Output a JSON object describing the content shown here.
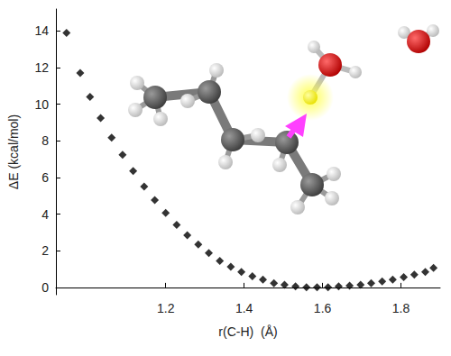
{
  "chart_data": {
    "type": "scatter",
    "xlabel": "r(C-H)  (Å)",
    "ylabel": "ΔE (kcal/mol)",
    "x": [
      0.947,
      0.982,
      1.007,
      1.034,
      1.062,
      1.09,
      1.117,
      1.145,
      1.172,
      1.2,
      1.228,
      1.255,
      1.283,
      1.31,
      1.338,
      1.366,
      1.393,
      1.421,
      1.448,
      1.476,
      1.503,
      1.531,
      1.559,
      1.586,
      1.614,
      1.641,
      1.669,
      1.697,
      1.724,
      1.752,
      1.779,
      1.807,
      1.834,
      1.862,
      1.883
    ],
    "values": [
      13.9,
      11.7,
      10.4,
      9.25,
      8.18,
      7.24,
      6.36,
      5.51,
      4.77,
      4.07,
      3.41,
      2.85,
      2.34,
      1.87,
      1.45,
      1.12,
      0.84,
      0.61,
      0.42,
      0.23,
      0.14,
      0.05,
      0,
      0,
      0,
      0.05,
      0.09,
      0.14,
      0.23,
      0.33,
      0.42,
      0.56,
      0.7,
      0.84,
      1.07
    ],
    "color": "#000000",
    "marker": "diamond",
    "xlim": [
      0.92,
      1.9
    ],
    "xticks": [
      1.2,
      1.4,
      1.6,
      1.8
    ],
    "ylim": [
      -0.4,
      15.2
    ],
    "yticks": [
      0,
      2,
      4,
      6,
      8,
      10,
      12,
      14
    ],
    "grid": false
  }
}
